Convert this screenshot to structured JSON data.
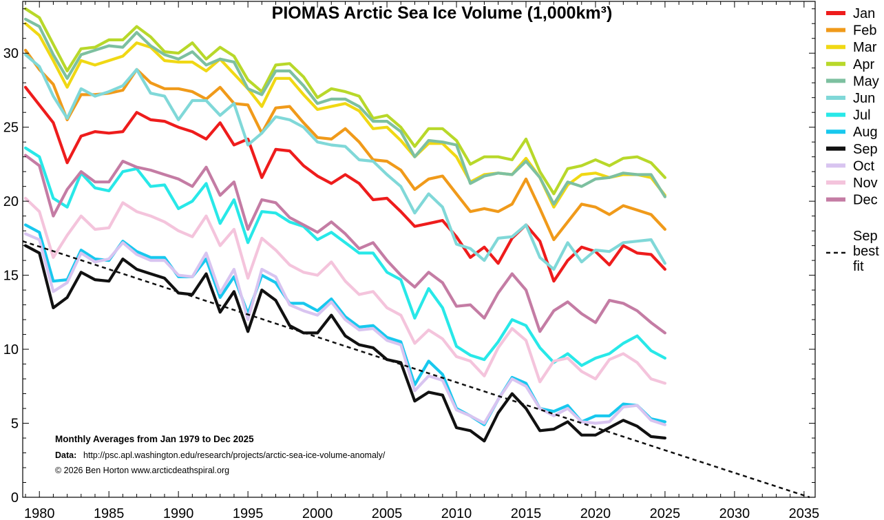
{
  "chart_data": {
    "type": "line",
    "title": "PIOMAS Arctic Sea Ice Volume (1,000km³)",
    "xlabel": "",
    "ylabel": "",
    "xlim": [
      1978.8,
      2035.8
    ],
    "ylim": [
      0,
      33.5
    ],
    "x_ticks": [
      1980,
      1985,
      1990,
      1995,
      2000,
      2005,
      2010,
      2015,
      2020,
      2025,
      2030,
      2035
    ],
    "y_ticks": [
      0,
      5,
      10,
      15,
      20,
      25,
      30
    ],
    "grid": false,
    "legend_position": "right",
    "start_year": 1979,
    "series": [
      {
        "name": "Jan",
        "color": "#ee1c1c",
        "values": [
          27.7,
          26.5,
          25.3,
          22.6,
          24.4,
          24.7,
          24.6,
          24.7,
          26.0,
          25.5,
          25.4,
          25.0,
          24.7,
          24.2,
          25.3,
          23.8,
          24.2,
          21.6,
          23.5,
          23.4,
          22.4,
          21.7,
          21.2,
          21.8,
          21.2,
          20.1,
          20.2,
          19.3,
          18.3,
          18.5,
          18.7,
          17.6,
          16.2,
          16.9,
          15.8,
          17.5,
          18.4,
          17.3,
          14.6,
          16.0,
          16.9,
          16.6,
          15.7,
          17.0,
          16.5,
          16.4,
          15.4
        ]
      },
      {
        "name": "Feb",
        "color": "#f09a1a",
        "values": [
          30.2,
          28.9,
          27.9,
          25.5,
          27.2,
          27.2,
          27.3,
          27.5,
          28.9,
          28.0,
          27.6,
          27.6,
          27.4,
          26.9,
          27.7,
          26.6,
          26.5,
          24.6,
          26.3,
          26.4,
          25.3,
          24.3,
          24.2,
          24.9,
          24.0,
          22.8,
          22.7,
          22.1,
          20.8,
          21.5,
          21.7,
          20.5,
          19.3,
          19.5,
          19.3,
          19.8,
          21.5,
          19.5,
          17.4,
          18.6,
          19.8,
          19.6,
          19.1,
          19.7,
          19.4,
          19.1,
          18.1
        ]
      },
      {
        "name": "Mar",
        "color": "#f0d814",
        "values": [
          32.0,
          31.2,
          29.5,
          27.7,
          29.5,
          29.2,
          29.5,
          29.8,
          30.7,
          30.4,
          29.5,
          29.4,
          29.4,
          28.8,
          29.6,
          28.6,
          27.6,
          26.4,
          28.3,
          28.3,
          27.2,
          26.2,
          26.4,
          26.6,
          26.1,
          24.9,
          25.0,
          24.1,
          23.0,
          23.9,
          23.9,
          23.0,
          21.3,
          21.8,
          21.9,
          21.8,
          22.9,
          21.6,
          19.6,
          21.1,
          21.8,
          21.9,
          21.6,
          21.8,
          21.8,
          21.6,
          20.4
        ]
      },
      {
        "name": "Apr",
        "color": "#b8d82a",
        "values": [
          33.0,
          32.4,
          30.6,
          28.8,
          30.3,
          30.4,
          30.9,
          30.9,
          31.8,
          31.1,
          30.1,
          30.0,
          30.7,
          29.6,
          30.4,
          29.8,
          28.2,
          27.4,
          29.2,
          29.3,
          28.4,
          27.0,
          27.6,
          27.4,
          27.1,
          25.6,
          25.8,
          25.0,
          23.7,
          24.9,
          24.9,
          24.1,
          22.5,
          23.0,
          23.0,
          22.8,
          24.2,
          22.0,
          20.5,
          22.2,
          22.4,
          22.8,
          22.4,
          22.9,
          23.0,
          22.6,
          21.6
        ]
      },
      {
        "name": "May",
        "color": "#7dc0a0",
        "values": [
          32.3,
          31.8,
          29.9,
          28.3,
          29.9,
          30.2,
          30.5,
          30.4,
          31.4,
          30.5,
          29.9,
          29.6,
          30.1,
          29.2,
          29.6,
          29.4,
          27.6,
          27.2,
          28.8,
          28.8,
          27.8,
          26.6,
          26.9,
          26.9,
          26.4,
          25.4,
          25.4,
          24.7,
          23.0,
          24.1,
          24.0,
          23.8,
          21.2,
          21.7,
          21.9,
          21.8,
          22.7,
          21.6,
          19.8,
          21.3,
          21.0,
          21.5,
          21.6,
          21.9,
          21.8,
          21.8,
          20.3
        ]
      },
      {
        "name": "Jun",
        "color": "#80d8d8",
        "values": [
          29.9,
          29.1,
          27.1,
          25.6,
          27.6,
          27.1,
          27.4,
          27.8,
          28.9,
          27.3,
          27.1,
          25.5,
          26.8,
          26.8,
          25.8,
          26.6,
          23.8,
          24.6,
          25.7,
          25.5,
          25.0,
          24.0,
          23.8,
          23.7,
          22.8,
          22.7,
          21.8,
          21.0,
          19.2,
          20.5,
          19.6,
          17.1,
          16.8,
          16.0,
          17.5,
          17.6,
          18.4,
          16.2,
          15.4,
          17.2,
          15.9,
          16.7,
          16.6,
          17.2,
          17.3,
          17.4,
          15.8
        ]
      },
      {
        "name": "Jul",
        "color": "#28e8e8",
        "values": [
          23.6,
          23.0,
          20.2,
          19.6,
          21.9,
          20.9,
          20.7,
          22.0,
          22.2,
          21.0,
          21.1,
          19.5,
          20.0,
          21.2,
          18.5,
          20.1,
          17.2,
          19.3,
          19.2,
          18.6,
          18.3,
          17.4,
          17.9,
          17.2,
          16.5,
          16.5,
          15.2,
          14.7,
          12.1,
          14.1,
          12.8,
          10.2,
          9.6,
          9.3,
          10.5,
          12.0,
          11.6,
          10.1,
          9.1,
          9.7,
          8.9,
          9.4,
          9.7,
          10.4,
          10.9,
          9.9,
          9.4
        ]
      },
      {
        "name": "Aug",
        "color": "#18c8ee",
        "values": [
          18.4,
          17.9,
          14.6,
          14.7,
          16.7,
          16.1,
          16.0,
          17.3,
          16.6,
          16.2,
          16.2,
          14.9,
          14.9,
          16.1,
          13.5,
          14.9,
          12.4,
          15.0,
          14.5,
          13.1,
          13.1,
          12.6,
          13.4,
          12.2,
          11.5,
          11.6,
          10.8,
          10.5,
          7.6,
          9.2,
          8.3,
          6.0,
          5.5,
          4.9,
          6.6,
          8.1,
          7.7,
          6.0,
          5.8,
          6.2,
          5.1,
          5.5,
          5.5,
          6.3,
          6.2,
          5.3,
          5.1
        ]
      },
      {
        "name": "Sep",
        "color": "#111111",
        "values": [
          17.0,
          16.5,
          12.8,
          13.5,
          15.2,
          14.7,
          14.6,
          16.1,
          15.4,
          15.1,
          14.8,
          13.8,
          13.7,
          15.1,
          12.5,
          13.9,
          11.2,
          14.0,
          13.3,
          11.6,
          11.1,
          11.1,
          12.3,
          10.9,
          10.3,
          10.1,
          9.3,
          9.1,
          6.5,
          7.1,
          6.9,
          4.7,
          4.5,
          3.8,
          5.7,
          7.0,
          6.0,
          4.5,
          4.6,
          5.1,
          4.2,
          4.2,
          4.7,
          5.2,
          4.8,
          4.1,
          4.0
        ]
      },
      {
        "name": "Oct",
        "color": "#d8c4f0",
        "values": [
          17.8,
          17.4,
          13.9,
          14.5,
          16.5,
          15.9,
          16.1,
          17.2,
          16.4,
          16.0,
          16.0,
          15.0,
          14.9,
          16.5,
          13.8,
          15.4,
          12.0,
          15.4,
          14.9,
          13.0,
          12.6,
          12.3,
          13.2,
          12.0,
          11.3,
          11.4,
          10.6,
          10.3,
          7.2,
          8.2,
          7.9,
          5.9,
          5.5,
          5.0,
          6.6,
          8.0,
          7.5,
          6.0,
          5.5,
          6.0,
          5.1,
          5.0,
          5.1,
          6.1,
          6.2,
          5.2,
          4.9
        ]
      },
      {
        "name": "Nov",
        "color": "#f4c4dc",
        "values": [
          20.2,
          19.3,
          16.2,
          17.7,
          19.0,
          18.1,
          18.2,
          19.9,
          19.3,
          19.0,
          18.6,
          18.0,
          17.6,
          19.0,
          17.0,
          18.1,
          14.8,
          17.5,
          16.7,
          15.7,
          15.2,
          15.0,
          15.9,
          14.6,
          13.7,
          13.9,
          12.8,
          12.3,
          10.4,
          11.3,
          10.7,
          9.5,
          9.2,
          8.2,
          10.1,
          11.4,
          10.6,
          7.8,
          9.2,
          9.4,
          8.5,
          8.0,
          9.3,
          9.7,
          9.1,
          8.0,
          7.7
        ]
      },
      {
        "name": "Dec",
        "color": "#c47ca4",
        "values": [
          23.1,
          22.4,
          19.0,
          20.8,
          22.0,
          21.3,
          21.3,
          22.7,
          22.3,
          22.1,
          21.8,
          21.5,
          21.0,
          22.3,
          20.4,
          21.3,
          18.1,
          20.1,
          19.9,
          18.9,
          18.4,
          17.9,
          18.6,
          17.8,
          16.8,
          17.2,
          16.0,
          15.0,
          14.2,
          15.2,
          14.5,
          12.9,
          13.0,
          12.1,
          13.8,
          15.1,
          14.0,
          11.2,
          12.6,
          13.2,
          12.4,
          11.8,
          13.3,
          13.1,
          12.6,
          11.8,
          11.1
        ]
      },
      {
        "name": "Sep best fit",
        "color": "#111111",
        "style": "dashed",
        "x": [
          1978.8,
          2035.4
        ],
        "values": [
          17.3,
          0.0
        ]
      }
    ],
    "legend": [
      "Jan",
      "Feb",
      "Mar",
      "Apr",
      "May",
      "Jun",
      "Jul",
      "Aug",
      "Sep",
      "Oct",
      "Nov",
      "Dec"
    ],
    "legend_fit_lines": [
      "Sep",
      "best",
      "fit"
    ],
    "annotations": {
      "line1": "Monthly Averages from Jan 1979 to Dec 2025",
      "data_label": "Data:",
      "data_url": "http://psc.apl.washington.edu/research/projects/arctic-sea-ice-volume-anomaly/",
      "copyright": "© 2026 Ben Horton www.arcticdeathspiral.org"
    }
  }
}
